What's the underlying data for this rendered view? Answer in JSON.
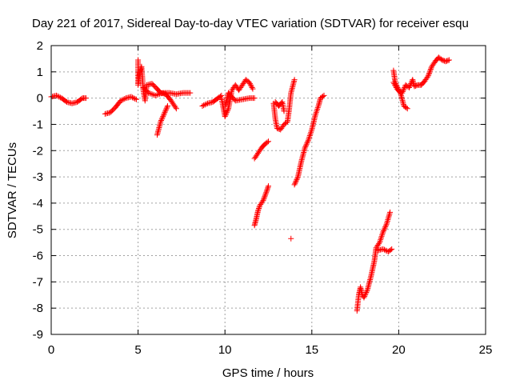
{
  "chart_data": {
    "type": "scatter",
    "title": "Day 221 of 2017, Sidereal Day-to-day VTEC variation (SDTVAR) for receiver esqu",
    "xlabel": "GPS time / hours",
    "ylabel": "SDTVAR / TECUs",
    "xlim": [
      0,
      25
    ],
    "ylim": [
      -9,
      2
    ],
    "xticks": [
      0,
      5,
      10,
      15,
      20,
      25
    ],
    "yticks": [
      -9,
      -8,
      -7,
      -6,
      -5,
      -4,
      -3,
      -2,
      -1,
      0,
      1,
      2
    ],
    "grid": true,
    "legend": "none",
    "marker": "+",
    "color": "#ff0000",
    "segments": [
      [
        [
          0.0,
          0.05
        ],
        [
          0.3,
          0.1
        ],
        [
          0.6,
          0.0
        ],
        [
          0.9,
          -0.15
        ],
        [
          1.2,
          -0.2
        ],
        [
          1.5,
          -0.15
        ],
        [
          1.8,
          0.0
        ],
        [
          2.0,
          0.0
        ]
      ],
      [
        [
          3.1,
          -0.6
        ],
        [
          3.4,
          -0.55
        ],
        [
          3.7,
          -0.35
        ],
        [
          4.0,
          -0.1
        ],
        [
          4.3,
          0.0
        ],
        [
          4.6,
          0.05
        ],
        [
          4.9,
          -0.05
        ]
      ],
      [
        [
          5.0,
          1.45
        ],
        [
          5.0,
          0.5
        ],
        [
          5.1,
          1.0
        ],
        [
          5.2,
          1.2
        ],
        [
          5.3,
          0.3
        ],
        [
          5.4,
          -0.1
        ],
        [
          5.5,
          0.5
        ],
        [
          5.8,
          0.55
        ],
        [
          6.1,
          0.35
        ],
        [
          6.3,
          0.2
        ],
        [
          6.6,
          0.15
        ],
        [
          6.9,
          -0.1
        ],
        [
          7.2,
          -0.4
        ]
      ],
      [
        [
          5.3,
          0.4
        ],
        [
          5.6,
          0.2
        ],
        [
          6.0,
          0.1
        ],
        [
          6.4,
          0.2
        ],
        [
          6.8,
          0.2
        ],
        [
          7.2,
          0.15
        ],
        [
          7.6,
          0.2
        ],
        [
          8.0,
          0.2
        ]
      ],
      [
        [
          6.1,
          -1.4
        ],
        [
          6.3,
          -0.9
        ],
        [
          6.5,
          -0.6
        ],
        [
          6.7,
          -0.3
        ]
      ],
      [
        [
          8.7,
          -0.3
        ],
        [
          9.0,
          -0.2
        ],
        [
          9.3,
          -0.15
        ],
        [
          9.6,
          0.0
        ],
        [
          9.8,
          0.1
        ]
      ],
      [
        [
          9.8,
          0.0
        ],
        [
          10.0,
          -0.7
        ],
        [
          10.2,
          -0.4
        ],
        [
          10.4,
          0.3
        ],
        [
          10.6,
          0.5
        ],
        [
          10.8,
          0.3
        ],
        [
          11.0,
          0.5
        ],
        [
          11.2,
          0.7
        ],
        [
          11.4,
          0.6
        ],
        [
          11.6,
          0.35
        ]
      ],
      [
        [
          10.0,
          -0.3
        ],
        [
          10.2,
          0.2
        ],
        [
          10.6,
          -0.1
        ],
        [
          11.0,
          -0.05
        ],
        [
          11.4,
          0.0
        ],
        [
          11.7,
          0.0
        ]
      ],
      [
        [
          11.7,
          -2.3
        ],
        [
          11.9,
          -2.1
        ],
        [
          12.1,
          -1.9
        ],
        [
          12.3,
          -1.75
        ],
        [
          12.5,
          -1.65
        ]
      ],
      [
        [
          11.7,
          -4.85
        ],
        [
          11.8,
          -4.6
        ],
        [
          11.9,
          -4.3
        ],
        [
          12.0,
          -4.1
        ],
        [
          12.2,
          -3.9
        ],
        [
          12.4,
          -3.55
        ],
        [
          12.5,
          -3.35
        ]
      ],
      [
        [
          12.8,
          -0.2
        ],
        [
          12.9,
          -0.8
        ],
        [
          13.0,
          -1.15
        ],
        [
          13.2,
          -1.2
        ],
        [
          13.4,
          -1.0
        ],
        [
          13.6,
          -0.9
        ],
        [
          13.7,
          -0.4
        ],
        [
          13.8,
          0.2
        ],
        [
          14.0,
          0.7
        ]
      ],
      [
        [
          12.9,
          -0.15
        ],
        [
          13.1,
          -0.3
        ],
        [
          13.3,
          -0.15
        ],
        [
          13.4,
          -0.5
        ]
      ],
      [
        [
          13.8,
          -5.35
        ]
      ],
      [
        [
          14.0,
          -3.3
        ],
        [
          14.2,
          -3.0
        ],
        [
          14.4,
          -2.4
        ],
        [
          14.6,
          -1.9
        ],
        [
          14.8,
          -1.6
        ],
        [
          15.0,
          -1.2
        ],
        [
          15.2,
          -0.65
        ],
        [
          15.4,
          -0.25
        ],
        [
          15.5,
          0.0
        ],
        [
          15.7,
          0.1
        ]
      ],
      [
        [
          17.6,
          -8.1
        ],
        [
          17.7,
          -7.5
        ],
        [
          17.8,
          -7.2
        ],
        [
          17.9,
          -7.5
        ],
        [
          18.0,
          -7.6
        ],
        [
          18.2,
          -7.3
        ],
        [
          18.4,
          -6.8
        ],
        [
          18.6,
          -6.2
        ],
        [
          18.7,
          -5.7
        ],
        [
          18.9,
          -5.5
        ],
        [
          19.1,
          -5.1
        ],
        [
          19.3,
          -4.8
        ],
        [
          19.5,
          -4.35
        ]
      ],
      [
        [
          18.8,
          -5.8
        ],
        [
          19.1,
          -5.75
        ],
        [
          19.4,
          -5.85
        ],
        [
          19.6,
          -5.75
        ]
      ],
      [
        [
          19.7,
          1.05
        ],
        [
          19.8,
          0.6
        ],
        [
          20.0,
          0.3
        ],
        [
          20.2,
          0.2
        ],
        [
          20.4,
          0.5
        ],
        [
          20.6,
          0.4
        ],
        [
          20.8,
          0.7
        ],
        [
          20.9,
          0.45
        ],
        [
          21.1,
          0.5
        ],
        [
          21.3,
          0.5
        ],
        [
          21.5,
          0.65
        ],
        [
          21.7,
          0.85
        ],
        [
          21.9,
          1.2
        ],
        [
          22.1,
          1.4
        ],
        [
          22.3,
          1.55
        ],
        [
          22.5,
          1.45
        ],
        [
          22.7,
          1.4
        ],
        [
          22.9,
          1.45
        ]
      ],
      [
        [
          19.7,
          0.6
        ],
        [
          19.9,
          0.35
        ],
        [
          20.1,
          0.2
        ],
        [
          20.3,
          -0.3
        ],
        [
          20.5,
          -0.4
        ]
      ]
    ]
  }
}
